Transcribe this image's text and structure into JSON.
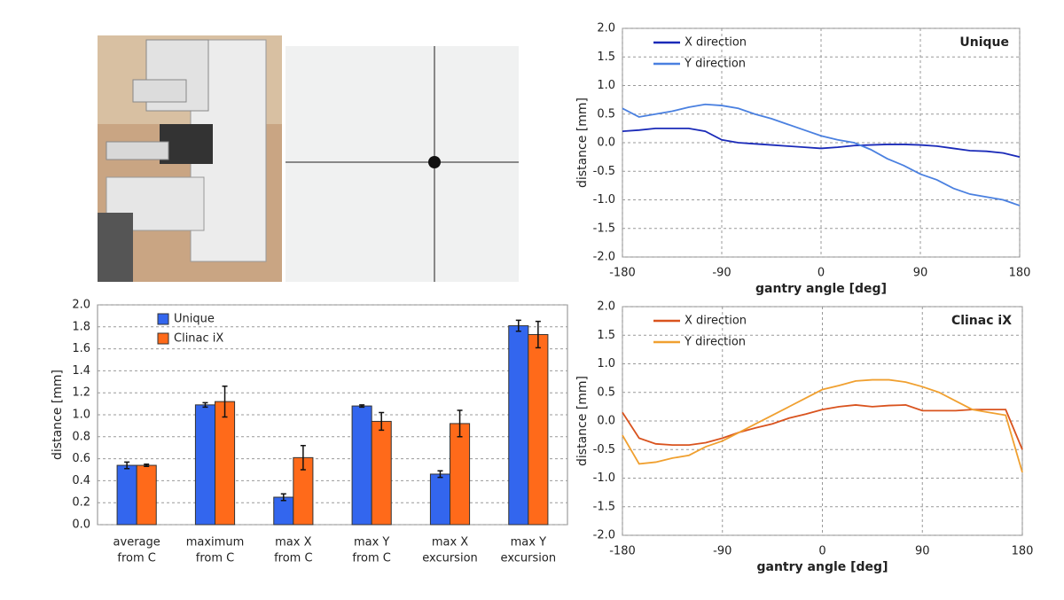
{
  "chart_data": [
    {
      "type": "bar",
      "ylabel": "distance [mm]",
      "categories": [
        [
          "average",
          "from C"
        ],
        [
          "maximum",
          "from C"
        ],
        [
          "max X",
          "from C"
        ],
        [
          "max Y",
          "from C"
        ],
        [
          "max X",
          "excursion"
        ],
        [
          "max Y",
          "excursion"
        ]
      ],
      "series": [
        {
          "name": "Unique",
          "color": "#3366ee",
          "values": [
            0.54,
            1.09,
            0.25,
            1.08,
            0.46,
            1.81
          ],
          "errors": [
            0.03,
            0.02,
            0.03,
            0.01,
            0.03,
            0.05
          ]
        },
        {
          "name": "Clinac iX",
          "color": "#ff6a1a",
          "values": [
            0.54,
            1.12,
            0.61,
            0.94,
            0.92,
            1.73
          ],
          "errors": [
            0.01,
            0.14,
            0.11,
            0.08,
            0.12,
            0.12
          ]
        }
      ],
      "ylim": [
        0,
        2
      ],
      "yticks": [
        {
          "value": 0,
          "label": "0.0"
        },
        0.2,
        0.4,
        0.6,
        0.8,
        {
          "value": 1,
          "label": "1.0"
        },
        1.2,
        1.4,
        1.6,
        1.8,
        {
          "value": 2,
          "label": "2.0"
        }
      ],
      "grid": true,
      "legend": "upper left"
    },
    {
      "type": "line",
      "title": "Unique",
      "xlabel": "gantry angle [deg]",
      "ylabel": "distance [mm]",
      "x": [
        -180,
        -165,
        -150,
        -135,
        -120,
        -105,
        -90,
        -75,
        -60,
        -45,
        -30,
        -15,
        0,
        15,
        30,
        45,
        60,
        75,
        90,
        105,
        120,
        135,
        150,
        165,
        180
      ],
      "series": [
        {
          "name": "X direction",
          "color": "#1a2ab8",
          "values": [
            0.2,
            0.22,
            0.25,
            0.25,
            0.25,
            0.2,
            0.05,
            0.0,
            -0.02,
            -0.04,
            -0.06,
            -0.08,
            -0.1,
            -0.08,
            -0.05,
            -0.04,
            -0.03,
            -0.03,
            -0.04,
            -0.06,
            -0.1,
            -0.14,
            -0.15,
            -0.18,
            -0.25
          ]
        },
        {
          "name": "Y direction",
          "color": "#4a80e0",
          "values": [
            0.6,
            0.45,
            0.5,
            0.55,
            0.62,
            0.67,
            0.65,
            0.6,
            0.5,
            0.42,
            0.32,
            0.22,
            0.12,
            0.05,
            0.0,
            -0.12,
            -0.28,
            -0.4,
            -0.55,
            -0.65,
            -0.8,
            -0.9,
            -0.95,
            -1.0,
            -1.1
          ]
        }
      ],
      "xlim": [
        -180,
        180
      ],
      "xticks": [
        -180,
        -90,
        0,
        90,
        180
      ],
      "ylim": [
        -2,
        2
      ],
      "yticks": [
        {
          "value": -2,
          "label": "-2.0"
        },
        -1.5,
        {
          "value": -1,
          "label": "-1.0"
        },
        -0.5,
        {
          "value": 0,
          "label": "0.0"
        },
        0.5,
        {
          "value": 1,
          "label": "1.0"
        },
        1.5,
        {
          "value": 2,
          "label": "2.0"
        }
      ],
      "grid": true,
      "legend": "upper left"
    },
    {
      "type": "line",
      "title": "Clinac iX",
      "xlabel": "gantry angle [deg]",
      "ylabel": "distance [mm]",
      "x": [
        -180,
        -165,
        -150,
        -135,
        -120,
        -105,
        -90,
        -75,
        -60,
        -45,
        -30,
        -15,
        0,
        15,
        30,
        45,
        60,
        75,
        90,
        105,
        120,
        135,
        150,
        165,
        180
      ],
      "series": [
        {
          "name": "X direction",
          "color": "#d9531e",
          "values": [
            0.15,
            -0.3,
            -0.4,
            -0.42,
            -0.42,
            -0.38,
            -0.3,
            -0.2,
            -0.12,
            -0.05,
            0.05,
            0.12,
            0.2,
            0.25,
            0.28,
            0.25,
            0.27,
            0.28,
            0.18,
            0.18,
            0.18,
            0.2,
            0.2,
            0.2,
            -0.5
          ]
        },
        {
          "name": "Y direction",
          "color": "#f0a030",
          "values": [
            -0.25,
            -0.75,
            -0.72,
            -0.65,
            -0.6,
            -0.45,
            -0.35,
            -0.2,
            -0.05,
            0.1,
            0.25,
            0.4,
            0.55,
            0.62,
            0.7,
            0.72,
            0.72,
            0.68,
            0.6,
            0.5,
            0.35,
            0.2,
            0.15,
            0.1,
            -0.9
          ]
        }
      ],
      "xlim": [
        -180,
        180
      ],
      "xticks": [
        -180,
        -90,
        0,
        90,
        180
      ],
      "ylim": [
        -2,
        2
      ],
      "yticks": [
        {
          "value": -2,
          "label": "-2.0"
        },
        -1.5,
        {
          "value": -1,
          "label": "-1.0"
        },
        -0.5,
        {
          "value": 0,
          "label": "0.0"
        },
        0.5,
        {
          "value": 1,
          "label": "1.0"
        },
        1.5,
        {
          "value": 2,
          "label": "2.0"
        }
      ],
      "grid": true,
      "legend": "upper left"
    }
  ]
}
